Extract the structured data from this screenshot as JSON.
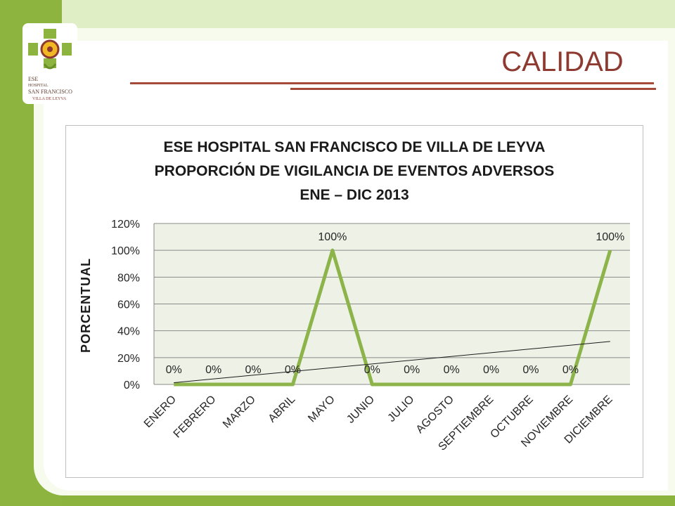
{
  "slide": {
    "title": "CALIDAD",
    "logo": {
      "lines": [
        "ESE",
        "HOSPITAL",
        "SAN FRANCISCO",
        "VILLA DE LEYVA"
      ]
    }
  },
  "colors": {
    "line": "#8db44a",
    "trend": "#1a1a1a",
    "plot_bg": "#eef2e6",
    "title_accent": "#8e3a30"
  },
  "chart_data": {
    "type": "line",
    "title": [
      "ESE HOSPITAL SAN FRANCISCO DE VILLA DE LEYVA",
      "PROPORCIÓN DE VIGILANCIA DE EVENTOS ADVERSOS",
      "ENE – DIC 2013"
    ],
    "xlabel": "",
    "ylabel": "PORCENTUAL",
    "ylim": [
      0,
      120
    ],
    "yticks": [
      "0%",
      "20%",
      "40%",
      "60%",
      "80%",
      "100%",
      "120%"
    ],
    "categories": [
      "ENERO",
      "FEBRERO",
      "MARZO",
      "ABRIL",
      "MAYO",
      "JUNIO",
      "JULIO",
      "AGOSTO",
      "SEPTIEMBRE",
      "OCTUBRE",
      "NOVIEMBRE",
      "DICIEMBRE"
    ],
    "series": [
      {
        "values": [
          0,
          0,
          0,
          0,
          100,
          0,
          0,
          0,
          0,
          0,
          0,
          100
        ],
        "data_labels": [
          "0%",
          "0%",
          "0%",
          "0%",
          "100%",
          "0%",
          "0%",
          "0%",
          "0%",
          "0%",
          "0%",
          "100%"
        ]
      }
    ],
    "trendline": {
      "type": "linear"
    },
    "grid": true,
    "legend": "none"
  }
}
